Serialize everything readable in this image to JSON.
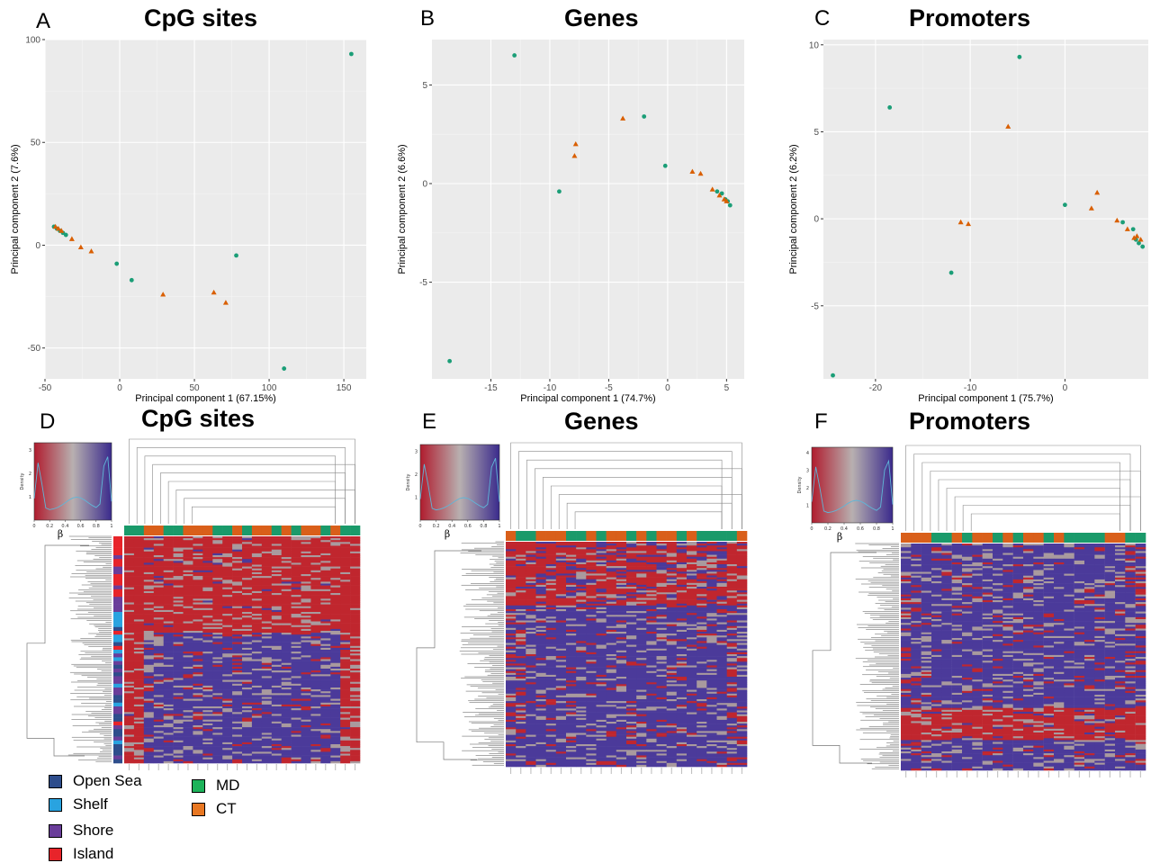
{
  "panel_letters": [
    "A",
    "B",
    "C",
    "D",
    "E",
    "F"
  ],
  "colors": {
    "MD": "#1b9e77",
    "CT": "#d95f02",
    "panel_bg": "#ebebeb",
    "hm_red": "#c0262e",
    "hm_blue": "#4b3a9a",
    "hm_grey": "#a99a9e"
  },
  "chart_data": [
    {
      "type": "scatter",
      "panel": "A",
      "title": "CpG sites",
      "xlabel": "Principal component 1 (67.15%)",
      "ylabel": "Principal component 2  (7.6%)",
      "xlim": [
        -50,
        165
      ],
      "ylim": [
        -65,
        100
      ],
      "xticks": [
        -50,
        0,
        50,
        100,
        150
      ],
      "yticks": [
        -50,
        0,
        50,
        100
      ],
      "grid": true,
      "series": [
        {
          "group": "MD",
          "marker": "circle",
          "x": [
            -44,
            -42,
            -40,
            -38,
            -36,
            -2,
            8,
            78,
            110,
            155
          ],
          "y": [
            9,
            8,
            7,
            6,
            5,
            -9,
            -17,
            -5,
            -60,
            93
          ]
        },
        {
          "group": "CT",
          "marker": "triangle",
          "x": [
            -43,
            -41,
            -39,
            -32,
            -26,
            -19,
            29,
            63,
            71
          ],
          "y": [
            9,
            8,
            7,
            3,
            -1,
            -3,
            -24,
            -23,
            -28
          ]
        }
      ]
    },
    {
      "type": "scatter",
      "panel": "B",
      "title": "Genes",
      "xlabel": "Principal component 1 (74.7%)",
      "ylabel": "Principal component 2  (6.6%)",
      "xlim": [
        -20,
        6.5
      ],
      "ylim": [
        -9.9,
        7.3
      ],
      "xticks": [
        -15,
        -10,
        -5,
        0,
        5
      ],
      "yticks": [
        -5,
        0,
        5
      ],
      "grid": true,
      "series": [
        {
          "group": "MD",
          "marker": "circle",
          "x": [
            -18.5,
            -13,
            -9.2,
            -2,
            -0.2,
            4.2,
            4.6,
            4.9,
            5.1,
            5.3
          ],
          "y": [
            -9,
            6.5,
            -0.4,
            3.4,
            0.9,
            -0.4,
            -0.5,
            -0.8,
            -0.9,
            -1.1
          ]
        },
        {
          "group": "CT",
          "marker": "triangle",
          "x": [
            -7.8,
            -7.9,
            -3.8,
            2.1,
            2.8,
            3.8,
            4.4,
            4.8,
            5.0
          ],
          "y": [
            2.0,
            1.4,
            3.3,
            0.6,
            0.5,
            -0.3,
            -0.6,
            -0.8,
            -0.9
          ]
        }
      ]
    },
    {
      "type": "scatter",
      "panel": "C",
      "title": "Promoters",
      "xlabel": "Principal component 1 (75.7%)",
      "ylabel": "Principal component 2  (6.2%)",
      "xlim": [
        -25.5,
        8.8
      ],
      "ylim": [
        -9.2,
        10.3
      ],
      "xticks": [
        -20,
        -10,
        0
      ],
      "yticks": [
        -5,
        0,
        5,
        10
      ],
      "grid": true,
      "series": [
        {
          "group": "MD",
          "marker": "circle",
          "x": [
            -24.5,
            -18.5,
            -12,
            -4.8,
            0,
            6.1,
            7.2,
            7.5,
            7.8,
            8.2
          ],
          "y": [
            -9,
            6.4,
            -3.1,
            9.3,
            0.8,
            -0.2,
            -0.6,
            -1.2,
            -1.4,
            -1.6
          ]
        },
        {
          "group": "CT",
          "marker": "triangle",
          "x": [
            -11,
            -10.2,
            -6,
            2.8,
            3.4,
            5.5,
            6.6,
            7.3,
            7.6,
            8.0
          ],
          "y": [
            -0.2,
            -0.3,
            5.3,
            0.6,
            1.5,
            -0.1,
            -0.6,
            -1.1,
            -1.0,
            -1.2
          ]
        }
      ]
    }
  ],
  "heatmaps": [
    {
      "panel": "D",
      "title": "CpG sites",
      "key_ylabel": "Density",
      "key_xlabel": "β",
      "key_xticks": [
        "0",
        "0.2",
        "0.4",
        "0.6",
        "0.8",
        "1"
      ],
      "key_yticks": [
        "1",
        "2",
        "3"
      ]
    },
    {
      "panel": "E",
      "title": "Genes",
      "key_ylabel": "Density",
      "key_xlabel": "β",
      "key_xticks": [
        "0",
        "0.2",
        "0.4",
        "0.6",
        "0.8",
        "1"
      ],
      "key_yticks": [
        "1",
        "2",
        "3"
      ]
    },
    {
      "panel": "F",
      "title": "Promoters",
      "key_ylabel": "Density",
      "key_xlabel": "β",
      "key_xticks": [
        "0",
        "0.2",
        "0.4",
        "0.6",
        "0.8",
        "1"
      ],
      "key_yticks": [
        "1",
        "2",
        "3",
        "4"
      ]
    }
  ],
  "legend_region": [
    {
      "label": "Open Sea",
      "color": "#2e4d8c"
    },
    {
      "label": "Shelf",
      "color": "#29a3e0"
    },
    {
      "label": "Shore",
      "color": "#6a3d9a"
    },
    {
      "label": "Island",
      "color": "#e8242a"
    }
  ],
  "legend_group": [
    {
      "label": "MD",
      "color": "#1db35a"
    },
    {
      "label": "CT",
      "color": "#e87722"
    }
  ]
}
